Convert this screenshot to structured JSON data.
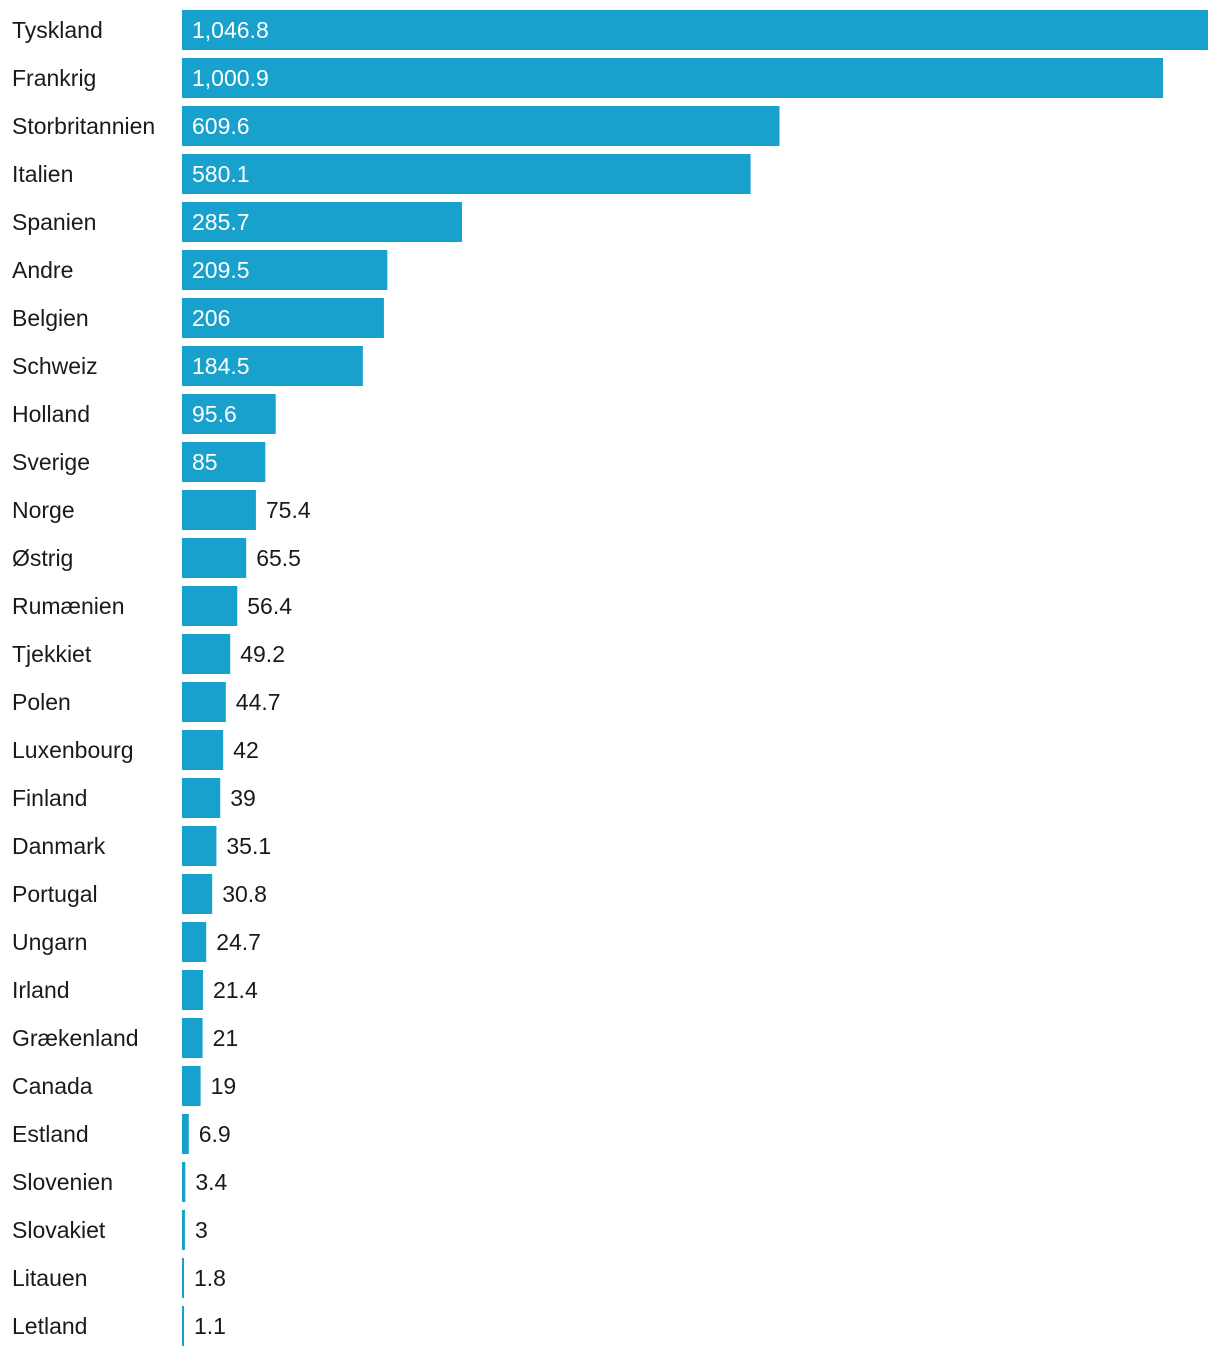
{
  "colors": {
    "bar": "#18a1cd",
    "text": "#1a1a1a",
    "inside_label": "#ffffff"
  },
  "chart_data": {
    "type": "bar",
    "orientation": "horizontal",
    "title": "",
    "xlabel": "",
    "ylabel": "",
    "xlim": [
      0,
      1046.8
    ],
    "grid": false,
    "legend": "none",
    "categories": [
      "Tyskland",
      "Frankrig",
      "Storbritannien",
      "Italien",
      "Spanien",
      "Andre",
      "Belgien",
      "Schweiz",
      "Holland",
      "Sverige",
      "Norge",
      "Østrig",
      "Rumænien",
      "Tjekkiet",
      "Polen",
      "Luxenbourg",
      "Finland",
      "Danmark",
      "Portugal",
      "Ungarn",
      "Irland",
      "Grækenland",
      "Canada",
      "Estland",
      "Slovenien",
      "Slovakiet",
      "Litauen",
      "Letland"
    ],
    "values": [
      1046.8,
      1000.9,
      609.6,
      580.1,
      285.7,
      209.5,
      206,
      184.5,
      95.6,
      85,
      75.4,
      65.5,
      56.4,
      49.2,
      44.7,
      42,
      39,
      35.1,
      30.8,
      24.7,
      21.4,
      21,
      19,
      6.9,
      3.4,
      3,
      1.8,
      1.1
    ],
    "value_labels": [
      "1,046.8",
      "1,000.9",
      "609.6",
      "580.1",
      "285.7",
      "209.5",
      "206",
      "184.5",
      "95.6",
      "85",
      "75.4",
      "65.5",
      "56.4",
      "49.2",
      "44.7",
      "42",
      "39",
      "35.1",
      "30.8",
      "24.7",
      "21.4",
      "21",
      "19",
      "6.9",
      "3.4",
      "3",
      "1.8",
      "1.1"
    ]
  }
}
